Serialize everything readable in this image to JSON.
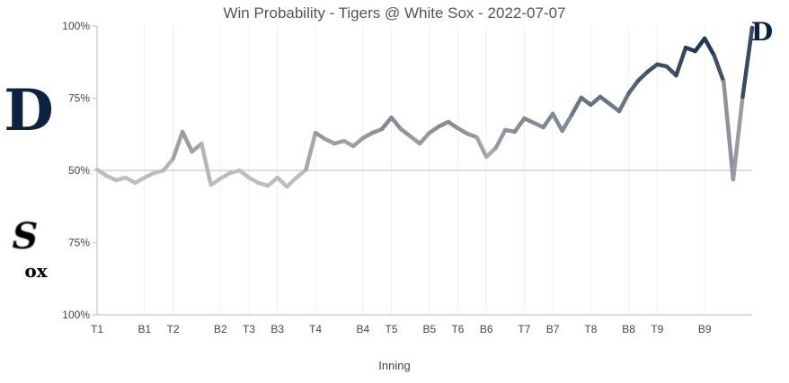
{
  "chart_data": {
    "type": "line",
    "title": "Win Probability - Tigers @ White Sox - 2022-07-07",
    "xlabel": "Inning",
    "ylabel": "",
    "y_tick_labels": [
      "100%",
      "75%",
      "50%",
      "75%",
      "100%"
    ],
    "y_ticks_tigers_prob": [
      100,
      75,
      50,
      25,
      0
    ],
    "ylim": [
      0,
      100
    ],
    "teams": {
      "top": "Tigers",
      "bottom": "White Sox"
    },
    "x_tick_labels": [
      {
        "label": "T1",
        "index": 0
      },
      {
        "label": "B1",
        "index": 5
      },
      {
        "label": "T2",
        "index": 8
      },
      {
        "label": "B2",
        "index": 13
      },
      {
        "label": "T3",
        "index": 16
      },
      {
        "label": "B3",
        "index": 19
      },
      {
        "label": "T4",
        "index": 23
      },
      {
        "label": "B4",
        "index": 28
      },
      {
        "label": "T5",
        "index": 31
      },
      {
        "label": "B5",
        "index": 35
      },
      {
        "label": "T6",
        "index": 38
      },
      {
        "label": "B6",
        "index": 41
      },
      {
        "label": "T7",
        "index": 45
      },
      {
        "label": "B7",
        "index": 48
      },
      {
        "label": "T8",
        "index": 52
      },
      {
        "label": "B8",
        "index": 56
      },
      {
        "label": "T9",
        "index": 59
      },
      {
        "label": "B9",
        "index": 64
      }
    ],
    "series": [
      {
        "name": "Tigers win probability",
        "values": [
          50.3,
          48.1,
          46.6,
          47.5,
          45.7,
          47.5,
          49.1,
          50,
          54,
          63.4,
          56.5,
          59.3,
          45,
          47.2,
          49.1,
          50,
          47.5,
          45.7,
          44.7,
          47.5,
          44.4,
          47.5,
          50.3,
          63,
          60.9,
          59.3,
          60.2,
          58.4,
          61.2,
          63,
          64.3,
          68.3,
          64.3,
          61.8,
          59.3,
          63,
          65.2,
          66.8,
          64.6,
          62.7,
          61.5,
          54.7,
          57.8,
          64,
          63.4,
          68,
          66.5,
          64.9,
          69.6,
          63.7,
          69.3,
          75.2,
          72.7,
          75.5,
          73,
          70.5,
          76.7,
          81.1,
          84.2,
          86.7,
          86,
          82.9,
          92.5,
          91.3,
          95.7,
          89.8,
          80.7,
          46.9,
          75.5,
          99.4
        ]
      }
    ],
    "grid": true,
    "colors": {
      "tigers": "#0c2340",
      "neutral": "#bdbdbd",
      "sox": "#000000"
    }
  }
}
